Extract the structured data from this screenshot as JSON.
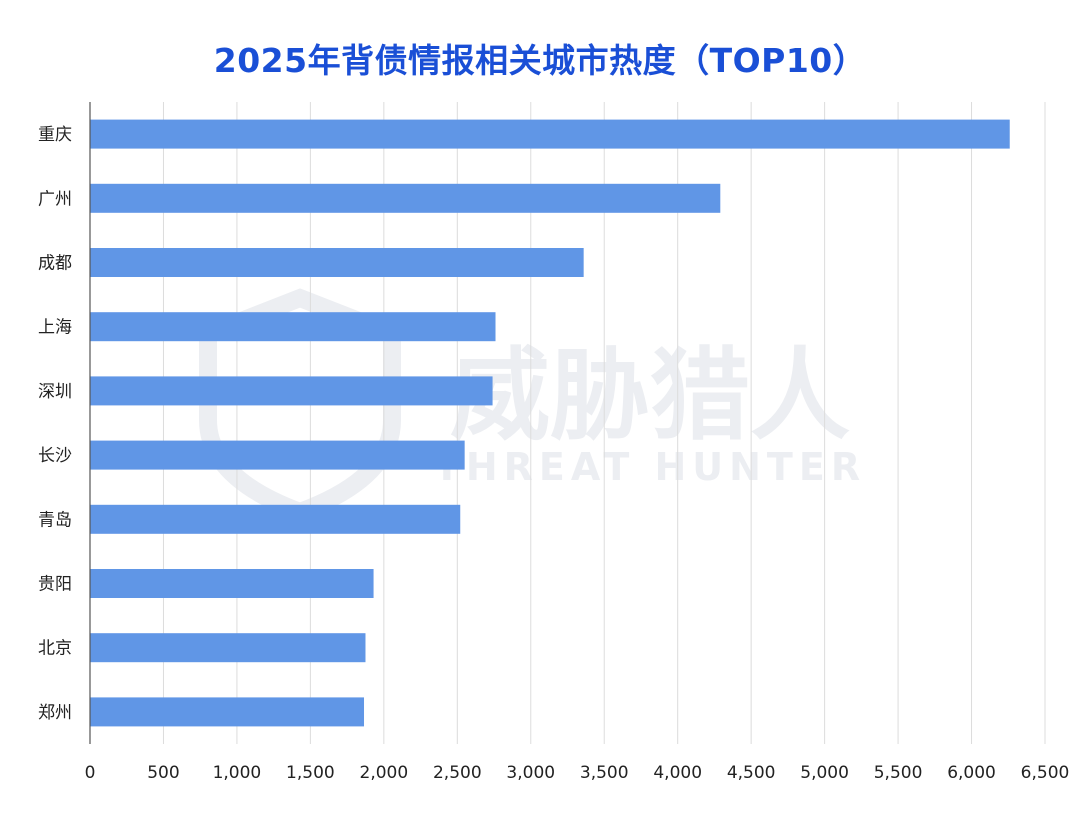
{
  "watermark": {
    "brand_cn": "威胁猎人",
    "brand_en": "THREAT HUNTER"
  },
  "chart_data": {
    "type": "bar",
    "orientation": "horizontal",
    "title": "2025年背债情报相关城市热度（TOP10）",
    "xlabel": "",
    "ylabel": "",
    "xlim": [
      0,
      6500
    ],
    "xticks": [
      0,
      500,
      1000,
      1500,
      2000,
      2500,
      3000,
      3500,
      4000,
      4500,
      5000,
      5500,
      6000,
      6500
    ],
    "xtick_labels": [
      "0",
      "500",
      "1,000",
      "1,500",
      "2,000",
      "2,500",
      "3,000",
      "3,500",
      "4,000",
      "4,500",
      "5,000",
      "5,500",
      "6,000",
      "6,500"
    ],
    "grid": true,
    "legend": "none",
    "bar_color": "#6096e6",
    "categories": [
      "重庆",
      "广州",
      "成都",
      "上海",
      "深圳",
      "长沙",
      "青岛",
      "贵阳",
      "北京",
      "郑州"
    ],
    "values": [
      6260,
      4290,
      3360,
      2760,
      2740,
      2550,
      2520,
      1930,
      1875,
      1865
    ]
  }
}
